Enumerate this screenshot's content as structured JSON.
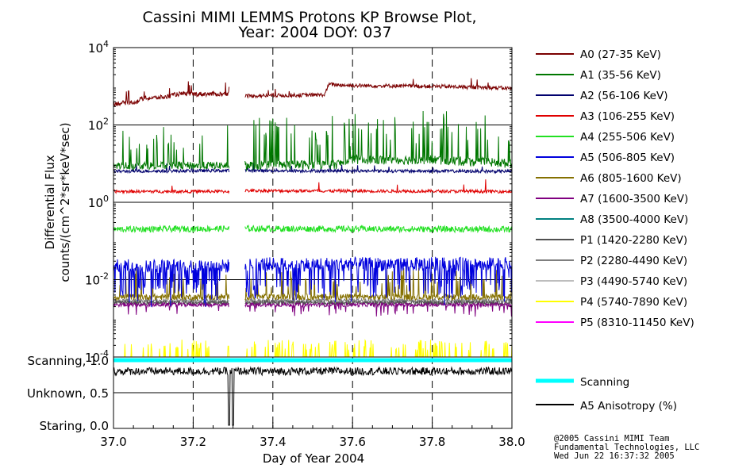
{
  "chart_data": {
    "type": "line",
    "title_line1": "Cassini MIMI LEMMS Protons KP Browse Plot,",
    "title_line2": "Year: 2004 DOY: 037",
    "xlabel": "Day of Year 2004",
    "ylabel_line1": "Differential Flux",
    "ylabel_line2": "counts/(cm^2*sr*keV*sec)",
    "xlim": [
      37.0,
      38.0
    ],
    "x_ticks": [
      "37.0",
      "37.2",
      "37.4",
      "37.6",
      "37.8",
      "38.0"
    ],
    "x_tick_values": [
      37.0,
      37.2,
      37.4,
      37.6,
      37.8,
      38.0
    ],
    "y_scale": "log",
    "ylim_log10": [
      -4,
      4
    ],
    "y_ticks": [
      {
        "base": "10",
        "exp": "4",
        "log": 4
      },
      {
        "base": "10",
        "exp": "2",
        "log": 2
      },
      {
        "base": "10",
        "exp": "0",
        "log": 0
      },
      {
        "base": "10",
        "exp": "-2",
        "log": -2
      },
      {
        "base": "10",
        "exp": "-4",
        "log": -4
      }
    ],
    "data_gaps": [
      [
        37.29,
        37.33
      ]
    ],
    "series": [
      {
        "name": "A0 (27-35 KeV)",
        "color": "#7b0000",
        "segments": [
          {
            "from": 37.0,
            "to": 37.29,
            "points": [
              [
                37.0,
                2.55
              ],
              [
                37.06,
                2.6
              ],
              [
                37.07,
                2.68
              ],
              [
                37.1,
                2.7
              ],
              [
                37.13,
                2.72
              ],
              [
                37.16,
                2.8
              ],
              [
                37.2,
                2.8
              ],
              [
                37.29,
                2.8
              ]
            ],
            "noise": 0.06,
            "spike_prob": 0.03,
            "spike_amp": 0.35
          },
          {
            "from": 37.33,
            "to": 38.0,
            "points": [
              [
                37.33,
                2.75
              ],
              [
                37.53,
                2.78
              ],
              [
                37.54,
                3.05
              ],
              [
                37.6,
                3.02
              ],
              [
                37.8,
                3.0
              ],
              [
                38.0,
                2.95
              ]
            ],
            "noise": 0.05,
            "spike_prob": 0.02,
            "spike_amp": 0.25
          }
        ]
      },
      {
        "name": "A1 (35-56 KeV)",
        "color": "#007700",
        "segments": [
          {
            "from": 37.0,
            "to": 37.29,
            "points": [
              [
                37.0,
                0.95
              ],
              [
                37.29,
                0.95
              ]
            ],
            "noise": 0.1,
            "spike_prob": 0.07,
            "spike_amp": 1.0
          },
          {
            "from": 37.33,
            "to": 38.0,
            "points": [
              [
                37.33,
                0.95
              ],
              [
                37.56,
                0.98
              ],
              [
                37.6,
                1.1
              ],
              [
                37.8,
                1.1
              ],
              [
                38.0,
                1.0
              ]
            ],
            "noise": 0.12,
            "spike_prob": 0.12,
            "spike_amp": 1.2
          }
        ]
      },
      {
        "name": "A2 (56-106 KeV)",
        "color": "#00006e",
        "segments": [
          {
            "from": 37.0,
            "to": 37.29,
            "points": [
              [
                37.0,
                0.8
              ],
              [
                37.29,
                0.82
              ]
            ],
            "noise": 0.04,
            "spike_prob": 0.02,
            "spike_amp": 0.2
          },
          {
            "from": 37.33,
            "to": 38.0,
            "points": [
              [
                37.33,
                0.82
              ],
              [
                38.0,
                0.8
              ]
            ],
            "noise": 0.04,
            "spike_prob": 0.02,
            "spike_amp": 0.2
          }
        ]
      },
      {
        "name": "A3 (106-255 KeV)",
        "color": "#e00000",
        "segments": [
          {
            "from": 37.0,
            "to": 37.29,
            "points": [
              [
                37.0,
                0.28
              ],
              [
                37.29,
                0.28
              ]
            ],
            "noise": 0.04,
            "spike_prob": 0.005,
            "spike_amp": 0.3
          },
          {
            "from": 37.33,
            "to": 38.0,
            "points": [
              [
                37.33,
                0.3
              ],
              [
                38.0,
                0.28
              ]
            ],
            "noise": 0.04,
            "spike_prob": 0.005,
            "spike_amp": 0.3
          }
        ]
      },
      {
        "name": "A4 (255-506 KeV)",
        "color": "#22e022",
        "segments": [
          {
            "from": 37.0,
            "to": 37.29,
            "points": [
              [
                37.0,
                -0.7
              ],
              [
                37.29,
                -0.68
              ]
            ],
            "noise": 0.08,
            "spike_prob": 0.0,
            "spike_amp": 0.0
          },
          {
            "from": 37.33,
            "to": 38.0,
            "points": [
              [
                37.33,
                -0.68
              ],
              [
                38.0,
                -0.7
              ]
            ],
            "noise": 0.08,
            "spike_prob": 0.0,
            "spike_amp": 0.0
          }
        ]
      },
      {
        "name": "A5 (506-805 KeV)",
        "color": "#0000dd",
        "segments": [
          {
            "from": 37.0,
            "to": 37.29,
            "points": [
              [
                37.0,
                -1.65
              ],
              [
                37.29,
                -1.65
              ]
            ],
            "noise": 0.18,
            "spike_prob": 0.22,
            "spike_amp": -0.9
          },
          {
            "from": 37.33,
            "to": 38.0,
            "points": [
              [
                37.33,
                -1.6
              ],
              [
                38.0,
                -1.6
              ]
            ],
            "noise": 0.18,
            "spike_prob": 0.22,
            "spike_amp": -0.9
          }
        ]
      },
      {
        "name": "A6 (805-1600 KeV)",
        "color": "#857000",
        "segments": [
          {
            "from": 37.0,
            "to": 37.29,
            "points": [
              [
                37.0,
                -2.45
              ],
              [
                37.29,
                -2.45
              ]
            ],
            "noise": 0.08,
            "spike_prob": 0.1,
            "spike_amp": 0.7
          },
          {
            "from": 37.33,
            "to": 38.0,
            "points": [
              [
                37.33,
                -2.45
              ],
              [
                38.0,
                -2.45
              ]
            ],
            "noise": 0.08,
            "spike_prob": 0.1,
            "spike_amp": 0.7
          }
        ]
      },
      {
        "name": "A7 (1600-3500 KeV)",
        "color": "#800080",
        "segments": [
          {
            "from": 37.0,
            "to": 37.29,
            "points": [
              [
                37.0,
                -2.65
              ],
              [
                37.29,
                -2.65
              ]
            ],
            "noise": 0.05,
            "spike_prob": 0.05,
            "spike_amp": -0.3
          },
          {
            "from": 37.33,
            "to": 38.0,
            "points": [
              [
                37.33,
                -2.65
              ],
              [
                38.0,
                -2.65
              ]
            ],
            "noise": 0.05,
            "spike_prob": 0.05,
            "spike_amp": -0.3
          }
        ]
      },
      {
        "name": "A8 (3500-4000 KeV)",
        "color": "#008080",
        "segments": []
      },
      {
        "name": "P1 (1420-2280 KeV)",
        "color": "#505050",
        "segments": [
          {
            "from": 37.0,
            "to": 37.29,
            "points": [
              [
                37.0,
                -2.6
              ],
              [
                37.29,
                -2.6
              ]
            ],
            "noise": 0.06,
            "spike_prob": 0.0,
            "spike_amp": 0.0
          },
          {
            "from": 37.33,
            "to": 38.0,
            "points": [
              [
                37.33,
                -2.6
              ],
              [
                38.0,
                -2.6
              ]
            ],
            "noise": 0.06,
            "spike_prob": 0.0,
            "spike_amp": 0.0
          }
        ]
      },
      {
        "name": "P2 (2280-4490 KeV)",
        "color": "#7f7f7f",
        "segments": [
          {
            "from": 37.0,
            "to": 37.29,
            "points": [
              [
                37.0,
                -2.55
              ],
              [
                37.29,
                -2.55
              ]
            ],
            "noise": 0.06,
            "spike_prob": 0.0,
            "spike_amp": 0.0
          },
          {
            "from": 37.33,
            "to": 38.0,
            "points": [
              [
                37.33,
                -2.55
              ],
              [
                38.0,
                -2.55
              ]
            ],
            "noise": 0.06,
            "spike_prob": 0.0,
            "spike_amp": 0.0
          }
        ]
      },
      {
        "name": "P3 (4490-5740 KeV)",
        "color": "#bdbdbd",
        "segments": []
      },
      {
        "name": "P4 (5740-7890 KeV)",
        "color": "#ffff00",
        "segments": [
          {
            "from": 37.0,
            "to": 37.29,
            "points": [
              [
                37.0,
                -4.0
              ],
              [
                37.29,
                -4.0
              ]
            ],
            "noise": 0.0,
            "spike_prob": 0.12,
            "spike_amp": 0.45
          },
          {
            "from": 37.33,
            "to": 38.0,
            "points": [
              [
                37.33,
                -4.0
              ],
              [
                38.0,
                -4.0
              ]
            ],
            "noise": 0.0,
            "spike_prob": 0.15,
            "spike_amp": 0.45
          }
        ]
      },
      {
        "name": "P5 (8310-11450 KeV)",
        "color": "#ff00ff",
        "segments": []
      }
    ],
    "status_panel": {
      "y_ticks": [
        "Scanning, 1.0",
        "Unknown, 0.5",
        "Staring, 0.0"
      ],
      "y_tick_values": [
        1.0,
        0.5,
        0.0
      ],
      "ylim": [
        0.0,
        1.0
      ],
      "series": [
        {
          "name": "Scanning",
          "color": "#00ffff",
          "value": 1.0
        },
        {
          "name": "A5 Anisotropy (%)",
          "color": "#000000",
          "baseline": 0.83,
          "noise": 0.06,
          "dropouts": [
            [
              37.288,
              37.292
            ],
            [
              37.298,
              37.302
            ]
          ]
        }
      ]
    },
    "credits": [
      "@2005 Cassini MIMI Team",
      "Fundamental Technologies, LLC",
      "Wed Jun 22 16:37:32 2005"
    ]
  }
}
